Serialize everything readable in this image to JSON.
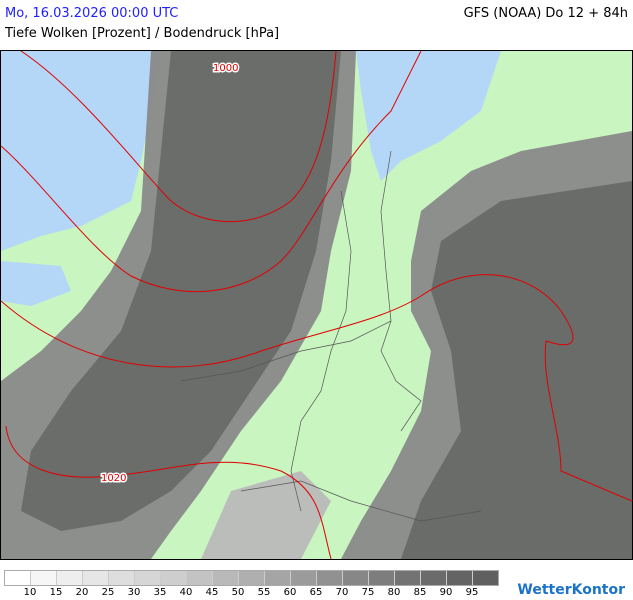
{
  "header": {
    "datetime": "Mo, 16.03.2026 00:00 UTC",
    "model_run": "GFS (NOAA) Do 12 + 84h",
    "parameter": "Tiefe Wolken [Prozent] / Bodendruck [hPa]"
  },
  "map": {
    "colors": {
      "land": "#c8f5c0",
      "water": "#b4d7f8",
      "isobar": "#e00000",
      "border": "#555555"
    },
    "isobar_labels": [
      "1000",
      "1020"
    ]
  },
  "legend": {
    "colors": [
      "#ffffff",
      "#f6f6f6",
      "#eeeeee",
      "#e6e6e6",
      "#dedede",
      "#d6d6d6",
      "#cecece",
      "#c3c3c3",
      "#b9b9b9",
      "#afafaf",
      "#a5a5a5",
      "#9b9b9b",
      "#919191",
      "#878787",
      "#7d7d7d",
      "#737373",
      "#6b6b6b",
      "#646464",
      "#606060"
    ],
    "labels": [
      "10",
      "15",
      "20",
      "25",
      "30",
      "35",
      "40",
      "45",
      "50",
      "55",
      "60",
      "65",
      "70",
      "75",
      "80",
      "85",
      "90",
      "95"
    ]
  },
  "logo": {
    "text": "WetterKontor"
  }
}
